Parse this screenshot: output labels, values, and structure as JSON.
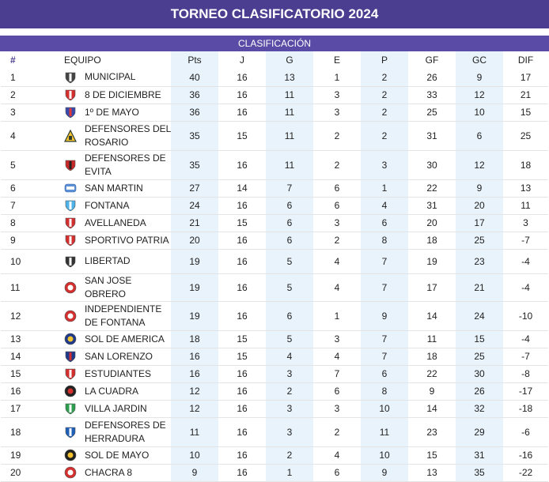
{
  "header": {
    "title": "TORNEO CLASIFICATORIO 2024",
    "subtitle": "CLASIFICACIÓN"
  },
  "columns": [
    "#",
    "EQUIPO",
    "Pts",
    "J",
    "G",
    "E",
    "P",
    "GF",
    "GC",
    "DIF"
  ],
  "rows": [
    {
      "pos": "1",
      "team": "MUNICIPAL",
      "pts": "40",
      "j": "16",
      "g": "13",
      "e": "1",
      "p": "2",
      "gf": "26",
      "gc": "9",
      "dif": "17",
      "crest": "shield-crest",
      "c1": "#444444",
      "c2": "#ffffff"
    },
    {
      "pos": "2",
      "team": "8 DE DICIEMBRE",
      "pts": "36",
      "j": "16",
      "g": "11",
      "e": "3",
      "p": "2",
      "gf": "33",
      "gc": "12",
      "dif": "21",
      "crest": "shield-crest",
      "c1": "#d32f2f",
      "c2": "#ffffff"
    },
    {
      "pos": "3",
      "team": "1º DE MAYO",
      "pts": "36",
      "j": "16",
      "g": "11",
      "e": "3",
      "p": "2",
      "gf": "25",
      "gc": "10",
      "dif": "15",
      "crest": "shield-crest",
      "c1": "#3949ab",
      "c2": "#e53935"
    },
    {
      "pos": "4",
      "team": "DEFENSORES DEL ROSARIO",
      "pts": "35",
      "j": "15",
      "g": "11",
      "e": "2",
      "p": "2",
      "gf": "31",
      "gc": "6",
      "dif": "25",
      "crest": "triangle-crest",
      "c1": "#2e3b2e",
      "c2": "#f2c230"
    },
    {
      "pos": "5",
      "team": "DEFENSORES DE EVITA",
      "pts": "35",
      "j": "16",
      "g": "11",
      "e": "2",
      "p": "3",
      "gf": "30",
      "gc": "12",
      "dif": "18",
      "crest": "shield-crest",
      "c1": "#c62828",
      "c2": "#222222"
    },
    {
      "pos": "6",
      "team": "SAN MARTIN",
      "pts": "27",
      "j": "14",
      "g": "7",
      "e": "6",
      "p": "1",
      "gf": "22",
      "gc": "9",
      "dif": "13",
      "crest": "badge-crest",
      "c1": "#5c8fd6",
      "c2": "#ffffff"
    },
    {
      "pos": "7",
      "team": "FONTANA",
      "pts": "24",
      "j": "16",
      "g": "6",
      "e": "6",
      "p": "4",
      "gf": "31",
      "gc": "20",
      "dif": "11",
      "crest": "shield-crest",
      "c1": "#4fb3e8",
      "c2": "#ffffff"
    },
    {
      "pos": "8",
      "team": "AVELLANEDA",
      "pts": "21",
      "j": "15",
      "g": "6",
      "e": "3",
      "p": "6",
      "gf": "20",
      "gc": "17",
      "dif": "3",
      "crest": "shield-crest",
      "c1": "#d32f2f",
      "c2": "#ffffff"
    },
    {
      "pos": "9",
      "team": "SPORTIVO PATRIA",
      "pts": "20",
      "j": "16",
      "g": "6",
      "e": "2",
      "p": "8",
      "gf": "18",
      "gc": "25",
      "dif": "-7",
      "crest": "shield-crest",
      "c1": "#d32f2f",
      "c2": "#ffffff"
    },
    {
      "pos": "10",
      "team": "LIBERTAD",
      "pts": "19",
      "j": "16",
      "g": "5",
      "e": "4",
      "p": "7",
      "gf": "19",
      "gc": "23",
      "dif": "-4",
      "crest": "shield-crest",
      "c1": "#333333",
      "c2": "#ffffff"
    },
    {
      "pos": "11",
      "team": "SAN JOSE OBRERO",
      "pts": "19",
      "j": "16",
      "g": "5",
      "e": "4",
      "p": "7",
      "gf": "17",
      "gc": "21",
      "dif": "-4",
      "crest": "round-crest",
      "c1": "#d32f2f",
      "c2": "#ffffff"
    },
    {
      "pos": "12",
      "team": "INDEPENDIENTE DE FONTANA",
      "pts": "19",
      "j": "16",
      "g": "6",
      "e": "1",
      "p": "9",
      "gf": "14",
      "gc": "24",
      "dif": "-10",
      "crest": "round-crest",
      "c1": "#d32f2f",
      "c2": "#ffffff"
    },
    {
      "pos": "13",
      "team": "SOL DE AMERICA",
      "pts": "18",
      "j": "15",
      "g": "5",
      "e": "3",
      "p": "7",
      "gf": "11",
      "gc": "15",
      "dif": "-4",
      "crest": "round-crest",
      "c1": "#1e3a8a",
      "c2": "#f2c230"
    },
    {
      "pos": "14",
      "team": "SAN LORENZO",
      "pts": "16",
      "j": "15",
      "g": "4",
      "e": "4",
      "p": "7",
      "gf": "18",
      "gc": "25",
      "dif": "-7",
      "crest": "shield-crest",
      "c1": "#1e3a8a",
      "c2": "#d32f2f"
    },
    {
      "pos": "15",
      "team": "ESTUDIANTES",
      "pts": "16",
      "j": "16",
      "g": "3",
      "e": "7",
      "p": "6",
      "gf": "22",
      "gc": "30",
      "dif": "-8",
      "crest": "shield-crest",
      "c1": "#d32f2f",
      "c2": "#ffffff"
    },
    {
      "pos": "16",
      "team": "LA CUADRA",
      "pts": "12",
      "j": "16",
      "g": "2",
      "e": "6",
      "p": "8",
      "gf": "9",
      "gc": "26",
      "dif": "-17",
      "crest": "round-crest",
      "c1": "#222222",
      "c2": "#d32f2f"
    },
    {
      "pos": "17",
      "team": "VILLA JARDIN",
      "pts": "12",
      "j": "16",
      "g": "3",
      "e": "3",
      "p": "10",
      "gf": "14",
      "gc": "32",
      "dif": "-18",
      "crest": "shield-crest",
      "c1": "#2e9e4f",
      "c2": "#ffffff"
    },
    {
      "pos": "18",
      "team": "DEFENSORES DE HERRADURA",
      "pts": "11",
      "j": "16",
      "g": "3",
      "e": "2",
      "p": "11",
      "gf": "23",
      "gc": "29",
      "dif": "-6",
      "crest": "shield-crest",
      "c1": "#1e5fb8",
      "c2": "#ffffff"
    },
    {
      "pos": "19",
      "team": "SOL DE MAYO",
      "pts": "10",
      "j": "16",
      "g": "2",
      "e": "4",
      "p": "10",
      "gf": "15",
      "gc": "31",
      "dif": "-16",
      "crest": "round-crest",
      "c1": "#222222",
      "c2": "#f2c230"
    },
    {
      "pos": "20",
      "team": "CHACRA 8",
      "pts": "9",
      "j": "16",
      "g": "1",
      "e": "6",
      "p": "9",
      "gf": "13",
      "gc": "35",
      "dif": "-22",
      "crest": "round-crest",
      "c1": "#d32f2f",
      "c2": "#ffffff"
    }
  ],
  "row_heights_source": "visual"
}
